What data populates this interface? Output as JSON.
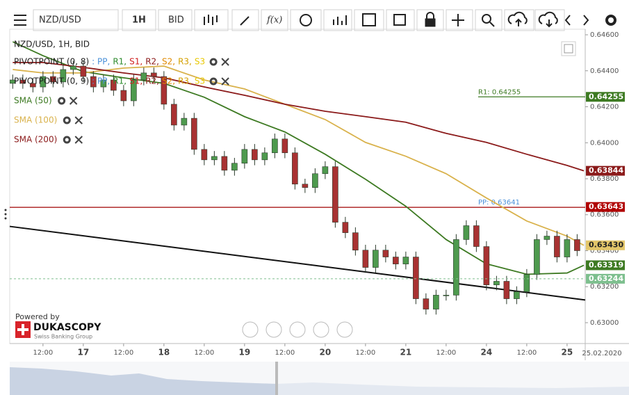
{
  "toolbar": {
    "symbol": "NZD/USD",
    "period": "1H",
    "side": "BID",
    "fx": "f(x)"
  },
  "chart_data": {
    "type": "candlestick",
    "title": "NZD/USD, 1H, BID",
    "up_color": "#4e9a4e",
    "down_color": "#a83232",
    "x": [
      -21,
      -18,
      -15,
      -12,
      -9,
      -6,
      -3,
      0,
      3,
      6,
      9,
      12,
      15,
      18,
      21,
      24,
      27,
      30,
      33,
      36,
      39,
      42,
      45,
      48,
      51,
      54,
      57,
      60,
      63,
      66,
      69,
      72,
      75,
      78,
      81,
      84,
      87,
      90,
      93,
      96,
      99,
      102,
      105,
      108,
      111,
      114,
      117,
      120,
      123,
      126,
      129,
      132,
      135,
      138,
      141,
      144,
      147
    ],
    "open": [
      0.6433,
      0.64349,
      0.6433,
      0.6431,
      0.64368,
      0.64338,
      0.64407,
      0.64426,
      0.64368,
      0.6431,
      0.64349,
      0.64291,
      0.64233,
      0.64349,
      0.64388,
      0.64368,
      0.64214,
      0.64098,
      0.64136,
      0.63963,
      0.63905,
      0.63924,
      0.63847,
      0.63886,
      0.63963,
      0.63905,
      0.63944,
      0.64021,
      0.63944,
      0.6377,
      0.63751,
      0.63828,
      0.63867,
      0.63558,
      0.635,
      0.63403,
      0.63307,
      0.63403,
      0.63365,
      0.63326,
      0.63365,
      0.63133,
      0.63075,
      0.63153,
      0.63153,
      0.63462,
      0.63539,
      0.63423,
      0.6321,
      0.6323,
      0.63133,
      0.63172,
      0.63268,
      0.63462,
      0.63481,
      0.63365,
      0.63462
    ],
    "high": [
      0.64379,
      0.64379,
      0.6436,
      0.64398,
      0.64398,
      0.64437,
      0.64456,
      0.64456,
      0.64398,
      0.64379,
      0.64379,
      0.64321,
      0.64379,
      0.64418,
      0.64418,
      0.64398,
      0.64244,
      0.64166,
      0.64166,
      0.63993,
      0.63954,
      0.63954,
      0.63916,
      0.63993,
      0.63993,
      0.63974,
      0.64051,
      0.64051,
      0.63974,
      0.638,
      0.63858,
      0.63897,
      0.63897,
      0.63588,
      0.6353,
      0.63433,
      0.63433,
      0.63433,
      0.63395,
      0.63395,
      0.63395,
      0.63163,
      0.63183,
      0.63183,
      0.63492,
      0.63569,
      0.63569,
      0.63453,
      0.6326,
      0.6326,
      0.63202,
      0.63298,
      0.63492,
      0.63511,
      0.63511,
      0.63492,
      0.63492
    ],
    "low": [
      0.643,
      0.643,
      0.6428,
      0.6428,
      0.64308,
      0.64308,
      0.64377,
      0.64338,
      0.6428,
      0.6428,
      0.64261,
      0.64203,
      0.64203,
      0.64319,
      0.64338,
      0.64184,
      0.64068,
      0.64068,
      0.63933,
      0.63875,
      0.63875,
      0.63817,
      0.63817,
      0.63856,
      0.63875,
      0.63875,
      0.63914,
      0.63914,
      0.6374,
      0.63721,
      0.63721,
      0.63798,
      0.63528,
      0.6347,
      0.63373,
      0.63277,
      0.63277,
      0.63335,
      0.63296,
      0.63296,
      0.63103,
      0.63045,
      0.63045,
      0.63123,
      0.63123,
      0.63432,
      0.63393,
      0.6318,
      0.6318,
      0.63103,
      0.63103,
      0.63142,
      0.63238,
      0.63432,
      0.63335,
      0.63335,
      0.6337
    ],
    "close": [
      0.64349,
      0.6433,
      0.6431,
      0.64368,
      0.64338,
      0.64407,
      0.64426,
      0.64368,
      0.6431,
      0.64349,
      0.64291,
      0.64233,
      0.64349,
      0.64388,
      0.64368,
      0.64214,
      0.64098,
      0.64136,
      0.63963,
      0.63905,
      0.63924,
      0.63847,
      0.63886,
      0.63963,
      0.63905,
      0.63944,
      0.64021,
      0.63944,
      0.6377,
      0.63751,
      0.63828,
      0.63867,
      0.63558,
      0.635,
      0.63403,
      0.63307,
      0.63403,
      0.63365,
      0.63326,
      0.63365,
      0.63133,
      0.63075,
      0.63153,
      0.63153,
      0.63462,
      0.63539,
      0.63423,
      0.6321,
      0.6323,
      0.63133,
      0.63172,
      0.63268,
      0.63462,
      0.63481,
      0.63365,
      0.63462,
      0.634
    ],
    "series": [
      {
        "name": "SMA (50)",
        "color": "#3d7a22",
        "x": [
          -21,
          -12,
          0,
          12,
          24,
          36,
          48,
          60,
          72,
          84,
          96,
          108,
          120,
          132,
          144,
          149
        ],
        "values": [
          0.64561,
          0.64484,
          0.64395,
          0.64361,
          0.6433,
          0.64253,
          0.64145,
          0.6406,
          0.63936,
          0.63797,
          0.63647,
          0.63462,
          0.63327,
          0.63269,
          0.63276,
          0.63319
        ]
      },
      {
        "name": "SMA (100)",
        "color": "#d9b24c",
        "x": [
          -21,
          -12,
          0,
          12,
          24,
          36,
          48,
          60,
          72,
          84,
          96,
          108,
          120,
          132,
          144,
          149
        ],
        "values": [
          0.64407,
          0.64388,
          0.64388,
          0.64415,
          0.64426,
          0.64349,
          0.64299,
          0.64214,
          0.64129,
          0.64002,
          0.63925,
          0.63828,
          0.63693,
          0.63565,
          0.63481,
          0.6343
        ]
      },
      {
        "name": "SMA (200)",
        "color": "#8b1a1a",
        "x": [
          -21,
          -12,
          0,
          12,
          24,
          36,
          48,
          60,
          72,
          84,
          96,
          108,
          120,
          132,
          144,
          149
        ],
        "values": [
          0.64446,
          0.64446,
          0.64419,
          0.64388,
          0.64361,
          0.6431,
          0.64264,
          0.64214,
          0.64175,
          0.64145,
          0.64114,
          0.64052,
          0.64002,
          0.63936,
          0.63874,
          0.63844
        ]
      }
    ],
    "pivots": [
      {
        "name": "PIVOTPOINT (0, 8)"
      },
      {
        "name": "PIVOTPOINT (0, 9)"
      }
    ],
    "pivot_parts": [
      {
        "text": ": PP,",
        "color": "#4a90d9"
      },
      {
        "text": "R1,",
        "color": "#2e8b2e"
      },
      {
        "text": "S1,",
        "color": "#d02020"
      },
      {
        "text": "R2,",
        "color": "#8b1a1a"
      },
      {
        "text": "S2,",
        "color": "#e08a00"
      },
      {
        "text": "R3,",
        "color": "#d4a000"
      },
      {
        "text": "S3",
        "color": "#e8c800"
      }
    ],
    "levels": [
      {
        "label": "R1: 0.64255",
        "value": 0.64255,
        "color": "#3d7a22"
      },
      {
        "label": "PP: 0.63641",
        "value": 0.63641,
        "color": "#a00000",
        "label_color": "#4a90d9"
      }
    ],
    "trendline": {
      "x": [
        -21.9,
        149.4
      ],
      "values": [
        0.63535,
        0.63126
      ],
      "color": "#111111"
    },
    "price_tags": [
      {
        "value": 0.64255,
        "label": "0.64255",
        "color": "#3d7a22"
      },
      {
        "value": 0.63844,
        "label": "0.63844",
        "color": "#8b1a1a"
      },
      {
        "value": 0.63643,
        "label": "0.63643",
        "color": "#b00000"
      },
      {
        "value": 0.6343,
        "label": "0.63430",
        "color": "#e3c66a",
        "text_color": "#222222"
      },
      {
        "value": 0.63319,
        "label": "0.63319",
        "color": "#3d7a22"
      },
      {
        "value": 0.63244,
        "label": "0.63244",
        "color": "#7dbf8e",
        "dashed": true
      }
    ],
    "xlim": [
      -21.9,
      149.4
    ],
    "ylim": [
      0.62884,
      0.64631
    ],
    "xticks": [
      {
        "value": -12,
        "label": "12:00"
      },
      {
        "value": 0,
        "label": "17"
      },
      {
        "value": 12,
        "label": "12:00"
      },
      {
        "value": 24,
        "label": "18"
      },
      {
        "value": 36,
        "label": "12:00"
      },
      {
        "value": 48,
        "label": "19"
      },
      {
        "value": 60,
        "label": "12:00"
      },
      {
        "value": 72,
        "label": "20"
      },
      {
        "value": 84,
        "label": "12:00"
      },
      {
        "value": 96,
        "label": "21"
      },
      {
        "value": 108,
        "label": "12:00"
      },
      {
        "value": 120,
        "label": "24"
      },
      {
        "value": 132,
        "label": "12:00"
      },
      {
        "value": 144,
        "label": "25"
      }
    ],
    "date_label": "25.02.2020",
    "yticks": [
      {
        "value": 0.646,
        "label": "0.64600"
      },
      {
        "value": 0.644,
        "label": "0.64400"
      },
      {
        "value": 0.642,
        "label": "0.64200"
      },
      {
        "value": 0.64,
        "label": "0.64000"
      },
      {
        "value": 0.638,
        "label": "0.63800"
      },
      {
        "value": 0.636,
        "label": "0.63600"
      },
      {
        "value": 0.634,
        "label": "0.63400"
      },
      {
        "value": 0.632,
        "label": "0.63200"
      },
      {
        "value": 0.63,
        "label": "0.63000"
      }
    ]
  },
  "branding": {
    "powered": "Powered by",
    "name": "DUKASCOPY",
    "tagline": "Swiss Banking Group"
  }
}
